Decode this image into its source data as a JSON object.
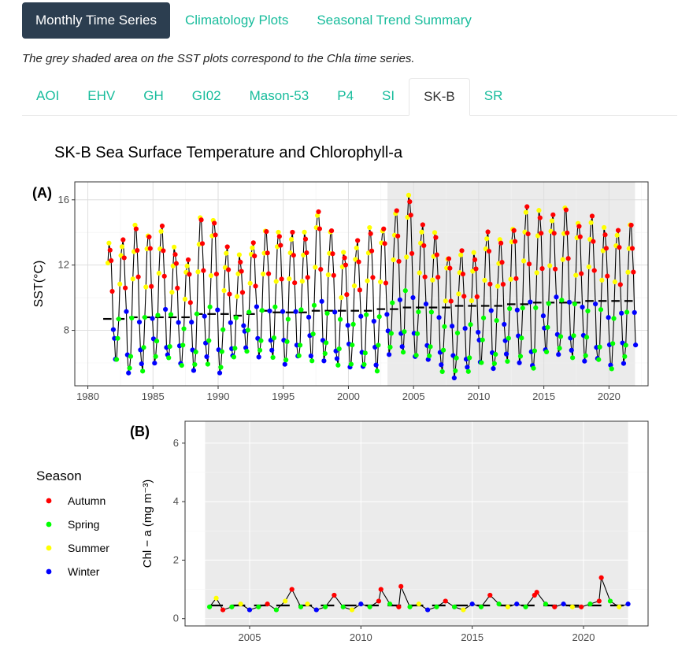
{
  "pills": [
    {
      "label": "Monthly Time Series",
      "active": true
    },
    {
      "label": "Climatology Plots",
      "active": false
    },
    {
      "label": "Seasonal Trend Summary",
      "active": false
    }
  ],
  "note": "The grey shaded area on the SST plots correspond to the Chla time series.",
  "site_tabs": [
    {
      "label": "AOI",
      "active": false
    },
    {
      "label": "EHV",
      "active": false
    },
    {
      "label": "GH",
      "active": false
    },
    {
      "label": "GI02",
      "active": false
    },
    {
      "label": "Mason-53",
      "active": false
    },
    {
      "label": "P4",
      "active": false
    },
    {
      "label": "SI",
      "active": false
    },
    {
      "label": "SK-B",
      "active": true
    },
    {
      "label": "SR",
      "active": false
    }
  ],
  "colors": {
    "Autumn": "#ff0000",
    "Spring": "#00ff00",
    "Summer": "#ffff00",
    "Winter": "#0000ff",
    "accent": "#18bc9c",
    "active_pill": "#2c3e50"
  },
  "chart_data": [
    {
      "type": "line",
      "title": "SK-B Sea Surface Temperature and Chlorophyll-a",
      "panel_label": "(A)",
      "ylabel": "SST(°C)",
      "xlim": [
        1979,
        2023
      ],
      "ylim": [
        4.6,
        17.1
      ],
      "xticks": [
        "1980",
        "1985",
        "1990",
        "1995",
        "2000",
        "2005",
        "2010",
        "2015",
        "2020"
      ],
      "yticks": [
        "8",
        "12",
        "16"
      ],
      "shaded_range": [
        2003,
        2022
      ],
      "x_start": 1981.5,
      "x_end": 2022.0,
      "annual_peaks": [
        13.3,
        13.5,
        14.4,
        14.0,
        14.3,
        13.0,
        12.3,
        14.9,
        14.9,
        13.0,
        12.5,
        13.4,
        14.1,
        14.1,
        13.9,
        13.9,
        15.4,
        14.1,
        12.8,
        13.4,
        14.2,
        14.4,
        15.3,
        16.3,
        14.4,
        13.9,
        12.6,
        12.8,
        12.7,
        14.0,
        13.5,
        14.4,
        15.5,
        15.3,
        15.1,
        15.5,
        14.7,
        14.9,
        14.2,
        14.2,
        14.5
      ],
      "annual_troughs": [
        5.3,
        6.2,
        5.3,
        5.6,
        6.1,
        6.2,
        5.9,
        5.5,
        6.0,
        5.5,
        6.2,
        6.8,
        6.4,
        6.4,
        6.0,
        6.2,
        6.2,
        6.2,
        5.9,
        5.8,
        5.6,
        5.6,
        6.6,
        6.6,
        6.4,
        6.1,
        5.6,
        5.2,
        5.4,
        6.0,
        5.6,
        6.2,
        6.1,
        5.5,
        6.7,
        6.5,
        6.4,
        6.2,
        6.0,
        5.7,
        6.0
      ],
      "annual_means": [
        8.7,
        8.7,
        8.8,
        8.8,
        8.8,
        8.8,
        8.8,
        9.0,
        9.0,
        9.0,
        8.9,
        9.0,
        9.2,
        9.1,
        9.1,
        9.1,
        9.2,
        9.2,
        9.2,
        9.2,
        9.2,
        9.3,
        9.3,
        9.4,
        9.4,
        9.4,
        9.4,
        9.5,
        9.5,
        9.5,
        9.5,
        9.6,
        9.6,
        9.7,
        9.7,
        9.7,
        9.7,
        9.8,
        9.8,
        9.8,
        9.8
      ]
    },
    {
      "type": "line",
      "panel_label": "(B)",
      "ylabel": "Chl − a (mg m⁻³)",
      "xlim": [
        2002.1,
        2022.9
      ],
      "ylim": [
        -0.25,
        6.75
      ],
      "xticks": [
        "2005",
        "2010",
        "2015",
        "2020"
      ],
      "yticks": [
        "0",
        "2",
        "4",
        "6"
      ],
      "shaded_range": [
        2003,
        2022
      ],
      "x": [
        2003.2,
        2003.5,
        2003.8,
        2004.2,
        2004.6,
        2005.0,
        2005.4,
        2005.8,
        2006.2,
        2006.6,
        2006.9,
        2007.3,
        2007.6,
        2008.0,
        2008.4,
        2008.8,
        2009.2,
        2009.6,
        2010.0,
        2010.4,
        2010.8,
        2010.9,
        2011.3,
        2011.7,
        2011.8,
        2012.2,
        2012.6,
        2013.0,
        2013.4,
        2013.8,
        2014.2,
        2014.6,
        2015.0,
        2015.4,
        2015.8,
        2016.2,
        2016.6,
        2017.0,
        2017.4,
        2017.8,
        2017.9,
        2018.3,
        2018.7,
        2019.1,
        2019.5,
        2019.9,
        2020.3,
        2020.7,
        2020.8,
        2021.2,
        2021.6,
        2022.0
      ],
      "y": [
        0.4,
        0.7,
        0.3,
        0.4,
        0.5,
        0.3,
        0.4,
        0.5,
        0.3,
        0.6,
        1.0,
        0.4,
        0.5,
        0.3,
        0.4,
        0.8,
        0.4,
        0.3,
        0.5,
        0.4,
        0.6,
        1.0,
        0.5,
        0.4,
        1.1,
        0.4,
        0.5,
        0.3,
        0.4,
        0.6,
        0.4,
        0.3,
        0.5,
        0.4,
        0.8,
        0.5,
        0.4,
        0.5,
        0.4,
        0.8,
        0.9,
        0.5,
        0.4,
        0.5,
        0.4,
        0.4,
        0.5,
        0.6,
        1.4,
        0.6,
        0.4,
        0.5
      ]
    }
  ],
  "legend": {
    "title": "Season",
    "items": [
      "Autumn",
      "Spring",
      "Summer",
      "Winter"
    ]
  }
}
